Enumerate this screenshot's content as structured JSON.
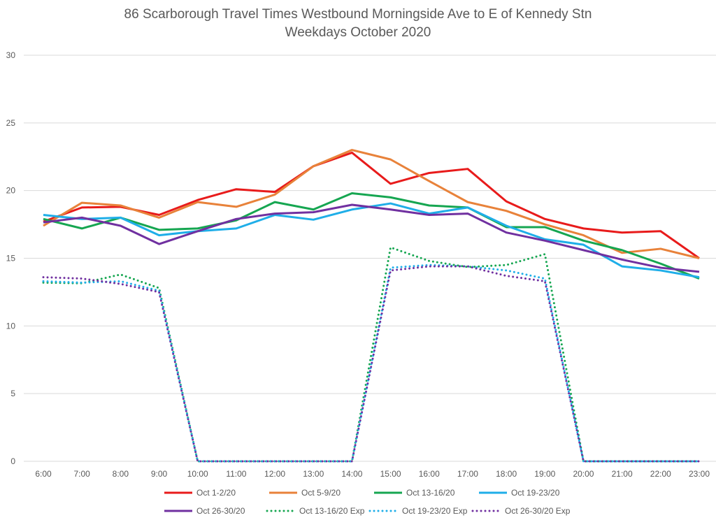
{
  "chart_data": {
    "type": "line",
    "title": "86 Scarborough Travel Times Westbound Morningside Ave to E of Kennedy Stn",
    "subtitle": "Weekdays October 2020",
    "xlabel": "",
    "ylabel": "",
    "ylim": [
      0,
      30
    ],
    "yticks": [
      "0",
      "5",
      "10",
      "15",
      "20",
      "25",
      "30"
    ],
    "grid": true,
    "legend_position": "bottom",
    "categories": [
      "6:00",
      "7:00",
      "8:00",
      "9:00",
      "10:00",
      "11:00",
      "12:00",
      "13:00",
      "14:00",
      "15:00",
      "16:00",
      "17:00",
      "18:00",
      "19:00",
      "20:00",
      "21:00",
      "22:00",
      "23:00"
    ],
    "series": [
      {
        "name": "Oct 1-2/20",
        "color": "#E81B1B",
        "style": "solid",
        "values": [
          17.7,
          18.75,
          18.8,
          18.2,
          19.3,
          20.1,
          19.9,
          21.8,
          22.8,
          20.5,
          21.3,
          21.6,
          19.2,
          17.9,
          17.2,
          16.9,
          17.0,
          15.0
        ]
      },
      {
        "name": "Oct 5-9/20",
        "color": "#E8823A",
        "style": "solid",
        "values": [
          17.4,
          19.1,
          18.9,
          18.0,
          19.15,
          18.8,
          19.7,
          21.8,
          23.0,
          22.3,
          20.7,
          19.15,
          18.5,
          17.5,
          16.7,
          15.4,
          15.7,
          15.0
        ]
      },
      {
        "name": "Oct 13-16/20",
        "color": "#16A651",
        "style": "solid",
        "values": [
          17.9,
          17.2,
          18.0,
          17.1,
          17.2,
          17.8,
          19.15,
          18.6,
          19.8,
          19.5,
          18.9,
          18.75,
          17.3,
          17.3,
          16.3,
          15.6,
          14.6,
          13.5
        ]
      },
      {
        "name": "Oct 19-23/20",
        "color": "#1FAEE8",
        "style": "solid",
        "values": [
          18.2,
          17.9,
          18.0,
          16.7,
          17.0,
          17.2,
          18.2,
          17.85,
          18.6,
          19.05,
          18.3,
          18.75,
          17.4,
          16.4,
          16.0,
          14.4,
          14.1,
          13.6
        ]
      },
      {
        "name": "Oct 26-30/20",
        "color": "#7030A0",
        "style": "solid",
        "values": [
          17.65,
          18.0,
          17.4,
          16.05,
          17.0,
          17.9,
          18.3,
          18.4,
          18.95,
          18.6,
          18.2,
          18.3,
          16.9,
          16.3,
          15.6,
          14.9,
          14.3,
          14.0
        ]
      },
      {
        "name": "Oct 13-16/20 Exp",
        "color": "#16A651",
        "style": "dotted",
        "values": [
          13.2,
          13.15,
          13.8,
          12.8,
          0,
          0,
          0,
          0,
          0,
          15.8,
          14.8,
          14.35,
          14.5,
          15.3,
          0,
          0,
          0,
          0
        ]
      },
      {
        "name": "Oct 19-23/20 Exp",
        "color": "#1FAEE8",
        "style": "dotted",
        "values": [
          13.3,
          13.2,
          13.3,
          12.6,
          0,
          0,
          0,
          0,
          0,
          14.3,
          14.5,
          14.4,
          14.1,
          13.5,
          0,
          0,
          0,
          0
        ]
      },
      {
        "name": "Oct 26-30/20 Exp",
        "color": "#7030A0",
        "style": "dotted",
        "values": [
          13.6,
          13.5,
          13.1,
          12.5,
          0,
          0,
          0,
          0,
          0,
          14.1,
          14.4,
          14.4,
          13.7,
          13.3,
          0,
          0,
          0,
          0
        ]
      }
    ]
  }
}
